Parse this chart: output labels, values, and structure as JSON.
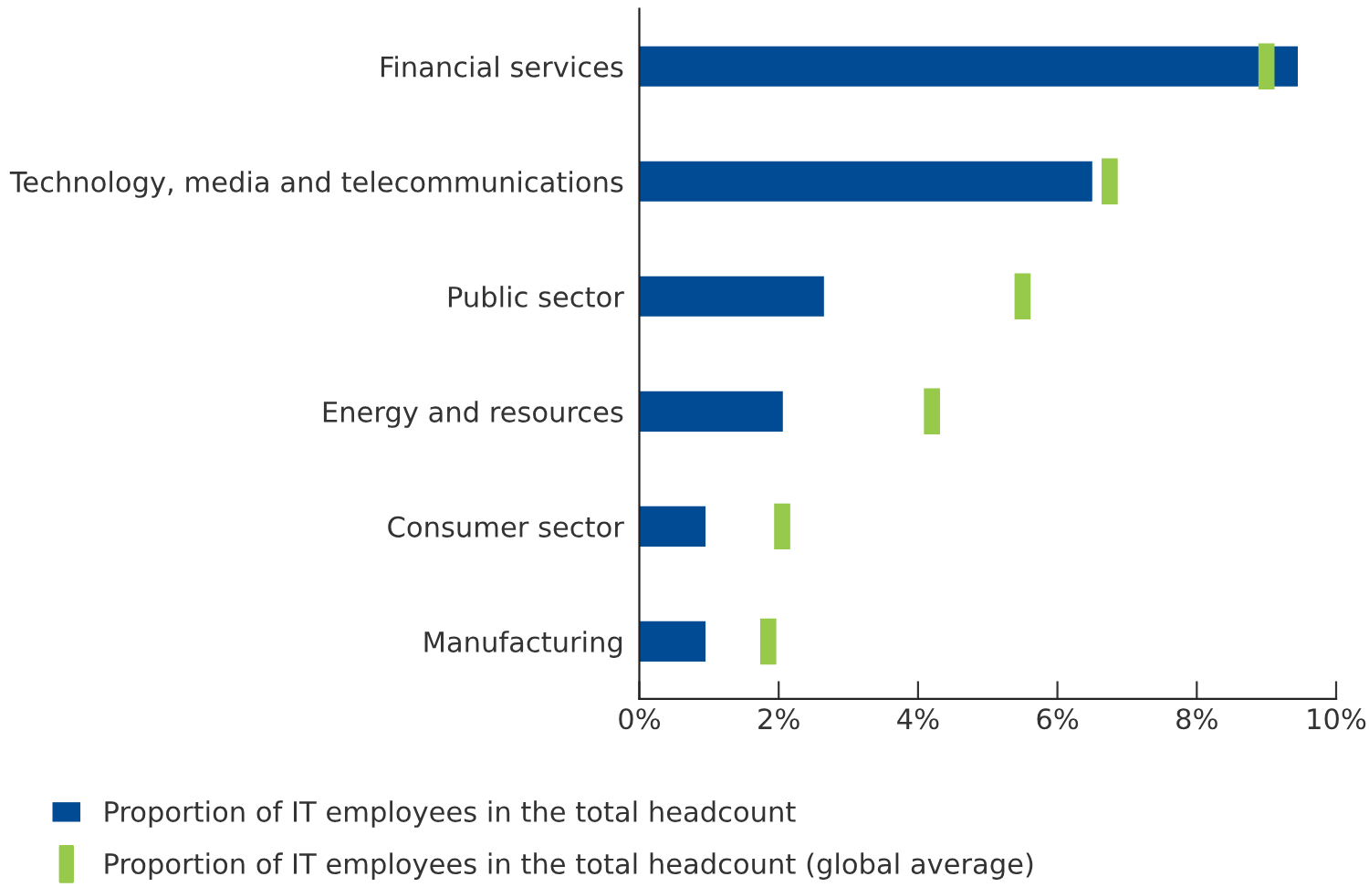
{
  "chart_data": {
    "type": "bar",
    "orientation": "horizontal",
    "categories": [
      "Financial services",
      "Technology, media and telecommunications",
      "Public sector",
      "Energy and resources",
      "Consumer sector",
      "Manufacturing"
    ],
    "series": [
      {
        "name": "Proportion of IT employees in the total headcount",
        "color": "#004b93",
        "values": [
          9.45,
          6.5,
          2.65,
          2.06,
          0.95,
          0.95
        ]
      },
      {
        "name": "Proportion of IT employees in the total headcount (global average)",
        "color": "#97c94a",
        "type": "scatter",
        "marker": "square",
        "values": [
          9.0,
          6.75,
          5.5,
          4.2,
          2.05,
          1.85
        ]
      }
    ],
    "xlim": [
      0,
      10
    ],
    "xticks": [
      {
        "value": 0,
        "label": "0%"
      },
      {
        "value": 2,
        "label": "2%"
      },
      {
        "value": 4,
        "label": "4%"
      },
      {
        "value": 6,
        "label": "6%"
      },
      {
        "value": 8,
        "label": "8%"
      },
      {
        "value": 10,
        "label": "10%"
      }
    ],
    "grid": false,
    "legend": "bottom"
  }
}
